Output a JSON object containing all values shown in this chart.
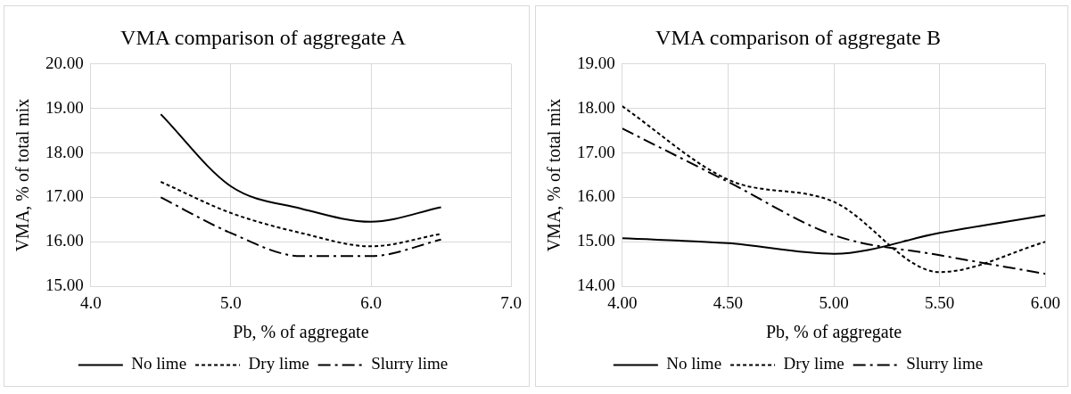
{
  "chart_data": [
    {
      "type": "line",
      "title": "VMA comparison of aggregate A",
      "xlabel": "Pb, % of aggregate",
      "ylabel": "VMA, % of total mix",
      "x": [
        4.5,
        5.0,
        5.5,
        6.0,
        6.5
      ],
      "series": [
        {
          "name": "No lime",
          "color": "#000000",
          "line_style": "solid",
          "values": [
            18.87,
            17.25,
            16.75,
            16.45,
            16.78
          ]
        },
        {
          "name": "Dry lime",
          "color": "#000000",
          "line_style": "dotted",
          "values": [
            17.35,
            16.65,
            16.2,
            15.9,
            16.18
          ]
        },
        {
          "name": "Slurry lime",
          "color": "#000000",
          "line_style": "dashed",
          "values": [
            17.0,
            16.2,
            15.68,
            15.68,
            16.05
          ]
        }
      ],
      "xlim": [
        4.0,
        7.0
      ],
      "xticks": [
        {
          "value": 4,
          "label": "4.0"
        },
        {
          "value": 5,
          "label": "5.0"
        },
        {
          "value": 6,
          "label": "6.0"
        },
        {
          "value": 7,
          "label": "7.0"
        }
      ],
      "ylim": [
        15,
        20
      ],
      "yticks": [
        {
          "value": 15,
          "label": "15.00"
        },
        {
          "value": 16,
          "label": "16.00"
        },
        {
          "value": 17,
          "label": "17.00"
        },
        {
          "value": 18,
          "label": "18.00"
        },
        {
          "value": 19,
          "label": "19.00"
        },
        {
          "value": 20,
          "label": "20.00"
        }
      ],
      "grid": true,
      "legend": "bottom",
      "marker": "none"
    },
    {
      "type": "line",
      "title": "VMA comparison of aggregate B",
      "xlabel": "Pb, % of aggregate",
      "ylabel": "VMA, % of total mix",
      "x": [
        4.0,
        4.5,
        5.0,
        5.5,
        6.0
      ],
      "series": [
        {
          "name": "No lime",
          "color": "#000000",
          "line_style": "solid",
          "values": [
            15.08,
            14.97,
            14.73,
            15.2,
            15.6
          ]
        },
        {
          "name": "Dry lime",
          "color": "#000000",
          "line_style": "dotted",
          "values": [
            18.05,
            16.4,
            15.9,
            14.32,
            15.0
          ]
        },
        {
          "name": "Slurry lime",
          "color": "#000000",
          "line_style": "dashed",
          "values": [
            17.55,
            16.35,
            15.15,
            14.7,
            14.28
          ]
        }
      ],
      "xlim": [
        4.0,
        6.0
      ],
      "xticks": [
        {
          "value": 4,
          "label": "4.00"
        },
        {
          "value": 4.5,
          "label": "4.50"
        },
        {
          "value": 5,
          "label": "5.00"
        },
        {
          "value": 5.5,
          "label": "5.50"
        },
        {
          "value": 6,
          "label": "6.00"
        }
      ],
      "ylim": [
        14,
        19
      ],
      "yticks": [
        {
          "value": 14,
          "label": "14.00"
        },
        {
          "value": 15,
          "label": "15.00"
        },
        {
          "value": 16,
          "label": "16.00"
        },
        {
          "value": 17,
          "label": "17.00"
        },
        {
          "value": 18,
          "label": "18.00"
        },
        {
          "value": 19,
          "label": "19.00"
        }
      ],
      "grid": true,
      "legend": "bottom",
      "marker": "none"
    }
  ]
}
